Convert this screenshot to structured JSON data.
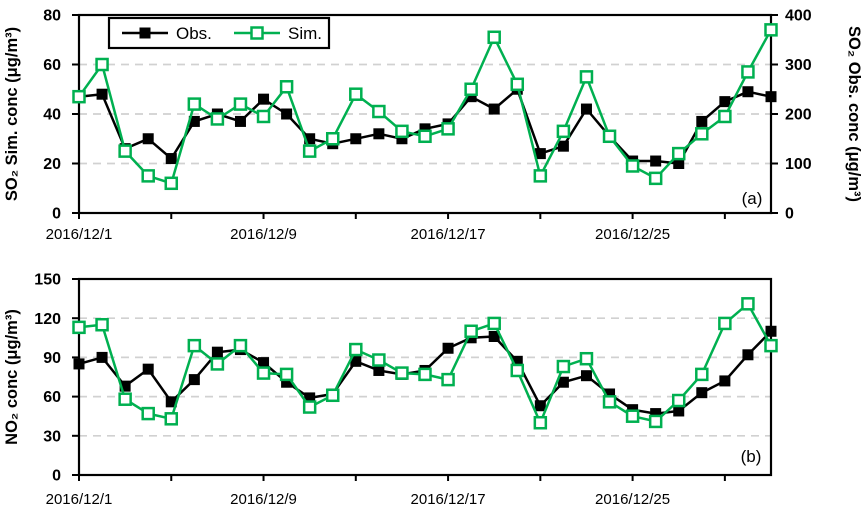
{
  "figure": {
    "background": "#ffffff",
    "grid_color": "#d1d1d1",
    "axis_color": "#000000"
  },
  "legend": {
    "items": [
      {
        "label": "Obs.",
        "series": "obs"
      },
      {
        "label": "Sim.",
        "series": "sim"
      }
    ]
  },
  "chart_data": [
    {
      "type": "line",
      "id": "a",
      "panel_label": "(a)",
      "left_axis": {
        "title": "SO₂ Sim. conc (μg/m³)",
        "ticks": [
          0,
          20,
          40,
          60,
          80
        ],
        "min": 0,
        "max": 80
      },
      "right_axis": {
        "title": "SO₂ Obs. conc (μg/m³)",
        "ticks": [
          0,
          100,
          200,
          300,
          400
        ],
        "min": 0,
        "max": 400
      },
      "gridline_values": [
        20,
        40,
        60
      ],
      "xticks": {
        "major": [
          {
            "day": 1,
            "label": "2016/12/1"
          },
          {
            "day": 9,
            "label": "2016/12/9"
          },
          {
            "day": 17,
            "label": "2016/12/17"
          },
          {
            "day": 25,
            "label": "2016/12/25"
          }
        ],
        "minor_days": [
          5,
          13,
          21,
          29
        ]
      },
      "x_day_range": [
        1,
        31
      ],
      "series": [
        {
          "name": "Obs.",
          "axis": "right",
          "color": "#000000",
          "marker": "square-filled",
          "values": [
            235,
            240,
            130,
            150,
            110,
            185,
            200,
            185,
            230,
            200,
            150,
            140,
            150,
            160,
            150,
            170,
            180,
            235,
            210,
            250,
            120,
            135,
            210,
            155,
            105,
            105,
            100,
            185,
            225,
            245,
            235
          ]
        },
        {
          "name": "Sim.",
          "axis": "left",
          "color": "#00b050",
          "marker": "square-open",
          "values": [
            47,
            60,
            25,
            15,
            12,
            44,
            38,
            44,
            39,
            51,
            25,
            30,
            48,
            41,
            33,
            31,
            34,
            50,
            71,
            52,
            15,
            33,
            55,
            31,
            19,
            14,
            24,
            32,
            39,
            57,
            74
          ]
        }
      ]
    },
    {
      "type": "line",
      "id": "b",
      "panel_label": "(b)",
      "left_axis": {
        "title": "NO₂  conc (μg/m³)",
        "ticks": [
          0,
          30,
          60,
          90,
          120,
          150
        ],
        "min": 0,
        "max": 150
      },
      "gridline_values": [
        30,
        60,
        90,
        120
      ],
      "xticks": {
        "major": [
          {
            "day": 1,
            "label": "2016/12/1"
          },
          {
            "day": 9,
            "label": "2016/12/9"
          },
          {
            "day": 17,
            "label": "2016/12/17"
          },
          {
            "day": 25,
            "label": "2016/12/25"
          }
        ],
        "minor_days": [
          5,
          13,
          21,
          29
        ]
      },
      "x_day_range": [
        1,
        31
      ],
      "series": [
        {
          "name": "Obs.",
          "axis": "left",
          "color": "#000000",
          "marker": "square-filled",
          "values": [
            85,
            90,
            68,
            81,
            56,
            73,
            94,
            96,
            86,
            71,
            59,
            62,
            87,
            80,
            77,
            80,
            97,
            105,
            106,
            87,
            53,
            71,
            76,
            62,
            50,
            47,
            49,
            63,
            72,
            92,
            110
          ]
        },
        {
          "name": "Sim.",
          "axis": "left",
          "color": "#00b050",
          "marker": "square-open",
          "values": [
            113,
            115,
            58,
            47,
            43,
            99,
            85,
            99,
            78,
            77,
            52,
            61,
            96,
            88,
            78,
            77,
            73,
            110,
            116,
            80,
            40,
            83,
            89,
            56,
            45,
            41,
            57,
            77,
            116,
            131,
            99
          ]
        }
      ]
    }
  ]
}
